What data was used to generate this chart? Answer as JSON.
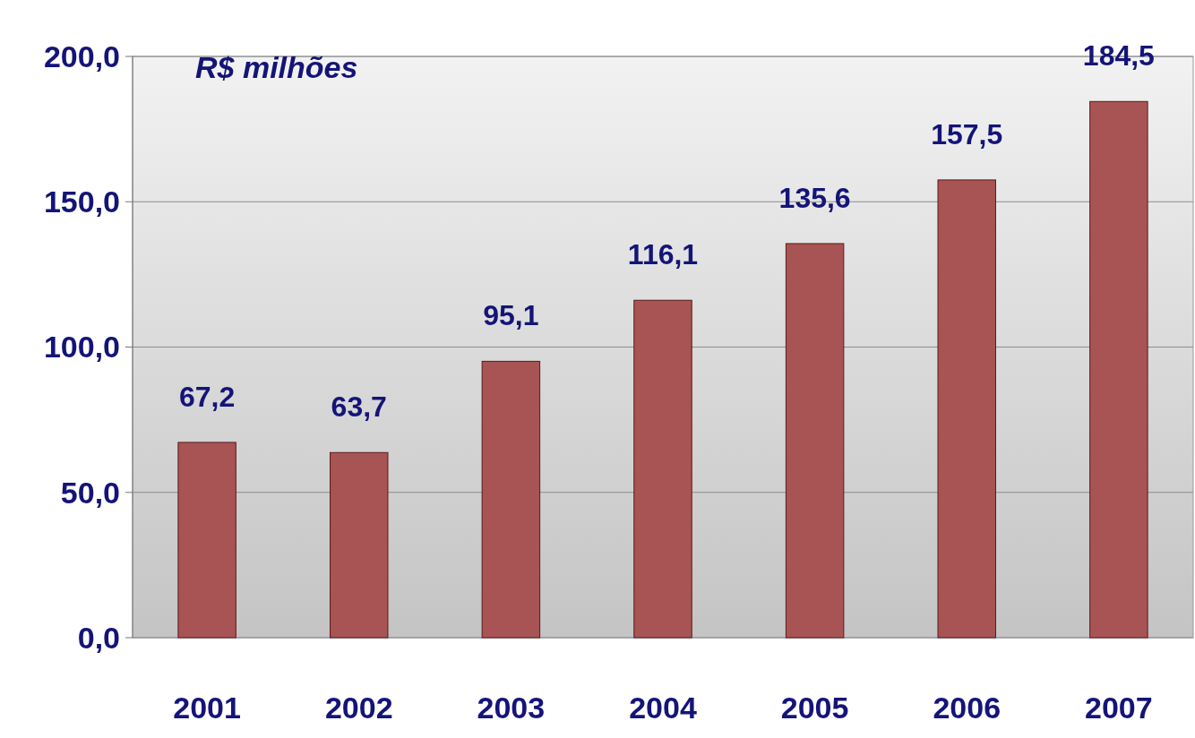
{
  "chart_data": {
    "type": "bar",
    "ylabel": "R$ milhões",
    "categories": [
      "2001",
      "2002",
      "2003",
      "2004",
      "2005",
      "2006",
      "2007"
    ],
    "values": [
      67.2,
      63.7,
      95.1,
      116.1,
      135.6,
      157.5,
      184.5
    ],
    "value_labels": [
      "67,2",
      "63,7",
      "95,1",
      "116,1",
      "135,6",
      "157,5",
      "184,5"
    ],
    "color": "#a85454",
    "ylim": [
      0,
      200
    ],
    "yticks": [
      {
        "value": 0,
        "label": "0,0"
      },
      {
        "value": 50,
        "label": "50,0"
      },
      {
        "value": 100,
        "label": "100,0"
      },
      {
        "value": 150,
        "label": "150,0"
      },
      {
        "value": 200,
        "label": "200,0"
      }
    ],
    "grid": true
  }
}
